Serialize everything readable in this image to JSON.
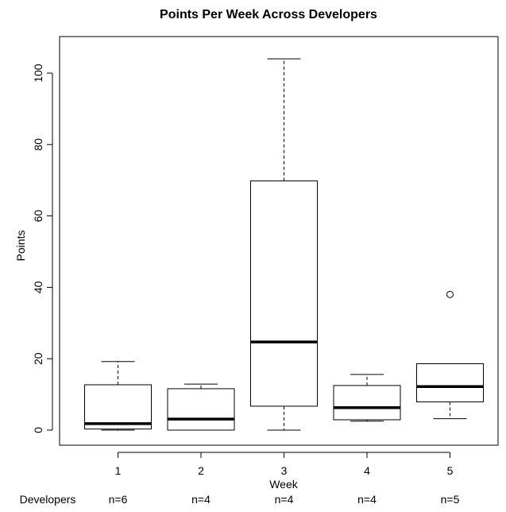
{
  "chart_data": {
    "type": "boxplot",
    "title": "Points Per Week Across Developers",
    "xlabel": "Week",
    "ylabel": "Points",
    "ylim": [
      -4,
      108
    ],
    "y_ticks": [
      0,
      20,
      40,
      60,
      80,
      100
    ],
    "categories": [
      "1",
      "2",
      "3",
      "4",
      "5"
    ],
    "counts_label": "Developers",
    "counts": [
      "n=6",
      "n=4",
      "n=4",
      "n=4",
      "n=5"
    ],
    "boxes": [
      {
        "category": "1",
        "lower_whisker": 0,
        "q1": 0.3,
        "median": 1.8,
        "q3": 12.7,
        "upper_whisker": 19.2,
        "outliers": []
      },
      {
        "category": "2",
        "lower_whisker": 0,
        "q1": 0,
        "median": 3.1,
        "q3": 11.6,
        "upper_whisker": 12.9,
        "outliers": []
      },
      {
        "category": "3",
        "lower_whisker": 0,
        "q1": 6.7,
        "median": 24.7,
        "q3": 69.8,
        "upper_whisker": 104,
        "outliers": []
      },
      {
        "category": "4",
        "lower_whisker": 2.5,
        "q1": 2.9,
        "median": 6.3,
        "q3": 12.5,
        "upper_whisker": 15.6,
        "outliers": []
      },
      {
        "category": "5",
        "lower_whisker": 3.2,
        "q1": 7.9,
        "median": 12.2,
        "q3": 18.6,
        "upper_whisker": 18.6,
        "outliers": [
          38
        ]
      }
    ],
    "grid": false,
    "legend": "none"
  }
}
